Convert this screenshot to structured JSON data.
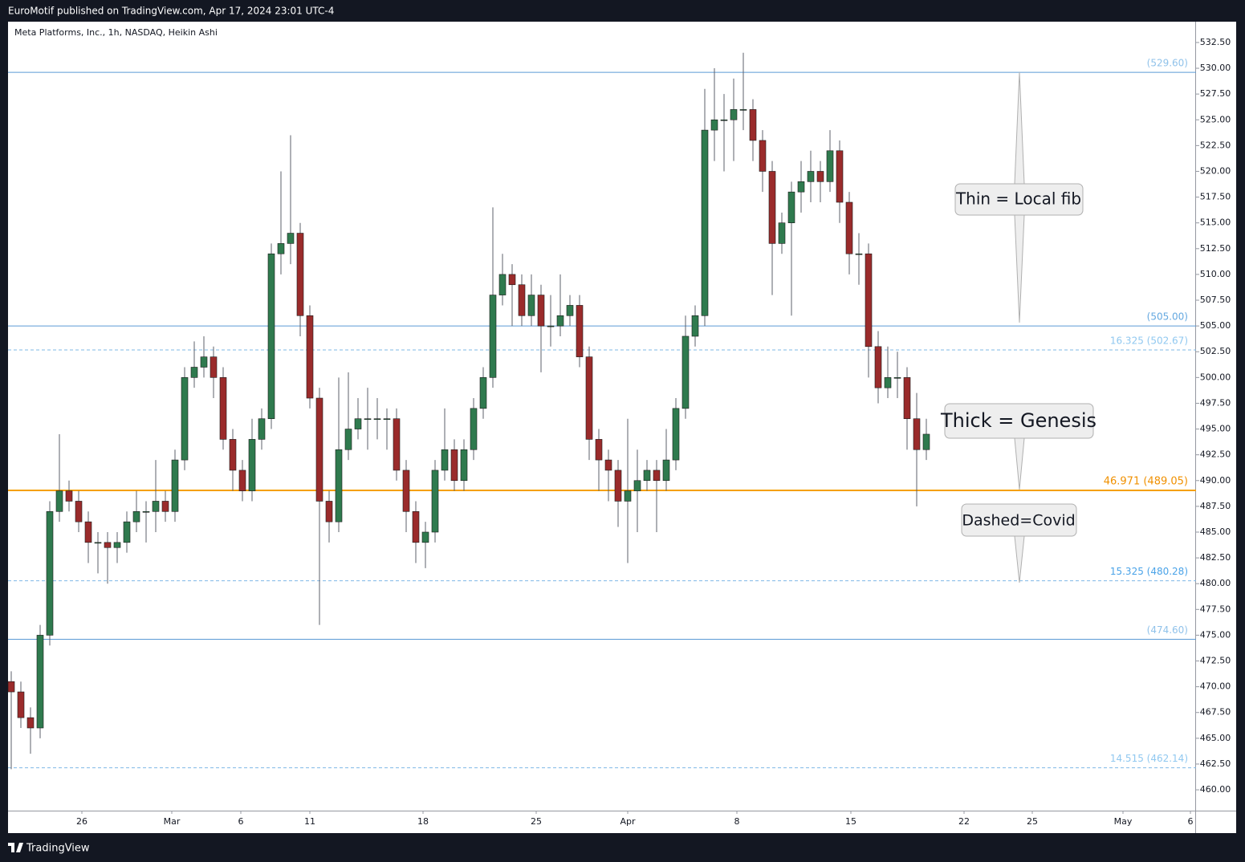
{
  "header": {
    "publisher": "EuroMotif published on TradingView.com, Apr 17, 2024 23:01 UTC-4"
  },
  "footer": {
    "brand": "TradingView"
  },
  "chart_data": {
    "type": "candlestick",
    "title": "Meta Platforms, Inc., 1h, NASDAQ, Heikin Ashi",
    "up_color": "#2f7a4e",
    "down_color": "#9a2b2b",
    "wick_color": "#5d606b",
    "x": [
      0,
      3,
      6,
      9,
      12,
      15,
      18,
      21,
      24,
      27,
      30,
      33,
      36,
      39,
      42,
      45,
      48,
      51,
      54,
      57,
      60,
      63,
      66,
      69,
      72,
      75,
      78,
      81,
      84,
      87,
      90,
      93,
      96,
      99,
      102,
      105,
      108,
      111,
      114,
      117,
      120,
      123,
      126,
      129,
      132,
      135,
      138,
      141,
      144,
      147,
      150,
      153,
      156,
      159,
      162,
      165,
      168,
      171,
      174,
      177,
      180,
      183,
      186,
      189,
      192,
      195,
      198,
      201,
      204,
      207,
      210,
      213,
      216,
      219,
      222,
      225,
      228,
      231,
      234,
      237,
      240,
      243,
      246,
      249,
      252,
      255,
      258,
      261,
      264,
      267,
      270,
      273,
      276,
      279,
      282,
      285
    ],
    "open": [
      470.5,
      469.5,
      467,
      466,
      475,
      487,
      489,
      488,
      486,
      484,
      484,
      483.5,
      484,
      486,
      487,
      487,
      488,
      487,
      492,
      500,
      501,
      502,
      500,
      494,
      491,
      489,
      494,
      496,
      512,
      513,
      514,
      506,
      498,
      488,
      486,
      493,
      495,
      496,
      496,
      496,
      496,
      491,
      487,
      484,
      485,
      491,
      493,
      490,
      493,
      497,
      500,
      508,
      510,
      509,
      506,
      508,
      505,
      505,
      506,
      507,
      502,
      494,
      492,
      491,
      488,
      489,
      490,
      491,
      490,
      492,
      497,
      504,
      506,
      524,
      525,
      525,
      526,
      526,
      523,
      520,
      513,
      515,
      518,
      519,
      520,
      519,
      522,
      517,
      512,
      512,
      503,
      499,
      500,
      500,
      496,
      493
    ],
    "high": [
      471.5,
      470.5,
      468,
      476,
      488,
      494.5,
      490,
      489,
      487,
      485,
      485,
      485,
      487,
      489,
      488,
      492,
      489,
      493,
      501,
      503.5,
      504,
      503,
      501,
      495,
      492,
      496,
      497,
      513,
      520,
      523.5,
      515,
      507,
      499,
      489,
      500,
      500.5,
      498,
      499,
      498,
      497,
      497,
      492,
      488,
      486,
      492,
      497,
      494,
      494,
      498,
      501,
      516.5,
      512,
      511,
      510,
      510,
      509,
      508,
      510,
      508,
      508,
      503,
      495,
      493,
      492,
      496,
      493,
      492,
      492,
      495,
      498,
      506,
      507,
      528,
      530,
      527.5,
      529,
      531.5,
      527,
      524,
      521,
      516,
      519,
      521,
      522,
      521,
      524,
      523,
      518,
      514,
      513,
      504.5,
      503,
      502.5,
      501,
      498.5,
      496
    ],
    "low": [
      462,
      466,
      463.5,
      465,
      474,
      486,
      487,
      485,
      482,
      481,
      480,
      482,
      483,
      485,
      484,
      485,
      486,
      486,
      491,
      499,
      500,
      498,
      493,
      489,
      488,
      488,
      493,
      495,
      510,
      511,
      504,
      497,
      476,
      484,
      485,
      492,
      494,
      493,
      494,
      493,
      490,
      485,
      482,
      481.5,
      484,
      490,
      489,
      489,
      492,
      496,
      499,
      507,
      505,
      505,
      505,
      500.5,
      503,
      504,
      505,
      501,
      492,
      489,
      488,
      485.5,
      482,
      485,
      489,
      485,
      489,
      491,
      496,
      503,
      505,
      521,
      520,
      521,
      524,
      521,
      518,
      508,
      512,
      506,
      516,
      517,
      517,
      518,
      515,
      510,
      509,
      500,
      497.5,
      498,
      498,
      493,
      487.5,
      492
    ],
    "close": [
      469.5,
      467,
      466,
      475,
      487,
      489,
      488,
      486,
      484,
      484,
      483.5,
      484,
      486,
      487,
      487,
      488,
      487,
      492,
      500,
      501,
      502,
      500,
      494,
      491,
      489,
      494,
      496,
      512,
      513,
      514,
      506,
      498,
      488,
      486,
      493,
      495,
      496,
      496,
      496,
      496,
      491,
      487,
      484,
      485,
      491,
      493,
      490,
      493,
      497,
      500,
      508,
      510,
      509,
      506,
      508,
      505,
      505,
      506,
      507,
      502,
      494,
      492,
      491,
      488,
      489,
      490,
      491,
      490,
      492,
      497,
      504,
      506,
      524,
      525,
      525,
      526,
      526,
      523,
      520,
      513,
      515,
      518,
      519,
      520,
      519,
      522,
      517,
      512,
      512,
      503,
      499,
      500,
      500,
      496,
      493,
      494.5
    ],
    "xlim": [
      -1,
      369
    ],
    "xticks": [
      {
        "value": 22,
        "label": "26"
      },
      {
        "value": 50,
        "label": "Mar"
      },
      {
        "value": 71.5,
        "label": "6"
      },
      {
        "value": 93,
        "label": "11"
      },
      {
        "value": 128.25,
        "label": "18"
      },
      {
        "value": 163.5,
        "label": "25"
      },
      {
        "value": 192,
        "label": "Apr"
      },
      {
        "value": 226,
        "label": "8"
      },
      {
        "value": 261.5,
        "label": "15"
      },
      {
        "value": 296.75,
        "label": "22"
      },
      {
        "value": 318,
        "label": "25"
      },
      {
        "value": 346.25,
        "label": "May"
      },
      {
        "value": 367.25,
        "label": "6"
      }
    ],
    "ylim": [
      457.98,
      534.52
    ],
    "yticks": [
      {
        "value": 460,
        "label": "460.00"
      },
      {
        "value": 462.5,
        "label": "462.50"
      },
      {
        "value": 465,
        "label": "465.00"
      },
      {
        "value": 467.5,
        "label": "467.50"
      },
      {
        "value": 470,
        "label": "470.00"
      },
      {
        "value": 472.5,
        "label": "472.50"
      },
      {
        "value": 475,
        "label": "475.00"
      },
      {
        "value": 477.5,
        "label": "477.50"
      },
      {
        "value": 480,
        "label": "480.00"
      },
      {
        "value": 482.5,
        "label": "482.50"
      },
      {
        "value": 485,
        "label": "485.00"
      },
      {
        "value": 487.5,
        "label": "487.50"
      },
      {
        "value": 490,
        "label": "490.00"
      },
      {
        "value": 492.5,
        "label": "492.50"
      },
      {
        "value": 495,
        "label": "495.00"
      },
      {
        "value": 497.5,
        "label": "497.50"
      },
      {
        "value": 500,
        "label": "500.00"
      },
      {
        "value": 502.5,
        "label": "502.50"
      },
      {
        "value": 505,
        "label": "505.00"
      },
      {
        "value": 507.5,
        "label": "507.50"
      },
      {
        "value": 510,
        "label": "510.00"
      },
      {
        "value": 512.5,
        "label": "512.50"
      },
      {
        "value": 515,
        "label": "515.00"
      },
      {
        "value": 517.5,
        "label": "517.50"
      },
      {
        "value": 520,
        "label": "520.00"
      },
      {
        "value": 522.5,
        "label": "522.50"
      },
      {
        "value": 525,
        "label": "525.00"
      },
      {
        "value": 527.5,
        "label": "527.50"
      },
      {
        "value": 530,
        "label": "530.00"
      },
      {
        "value": 532.5,
        "label": "532.50"
      }
    ],
    "levels": [
      {
        "value": 529.6,
        "label": "(529.60)",
        "style": "solid",
        "color": "#5b9bd5",
        "label_color": "#90c2ea",
        "width": 1
      },
      {
        "value": 505,
        "label": "(505.00)",
        "style": "solid",
        "color": "#5b9bd5",
        "label_color": "#64a8e0",
        "width": 1
      },
      {
        "value": 502.67,
        "label": "16.325 (502.67)",
        "style": "dashed",
        "color": "#7fb8e6",
        "label_color": "#90c8f0",
        "width": 1
      },
      {
        "value": 489.05,
        "label": "46.971 (489.05)",
        "style": "solid",
        "color": "#f5a000",
        "label_color": "#f09000",
        "width": 2
      },
      {
        "value": 480.28,
        "label": "15.325 (480.28)",
        "style": "dashed",
        "color": "#7fb8e6",
        "label_color": "#4aa3e8",
        "width": 1
      },
      {
        "value": 474.6,
        "label": "(474.60)",
        "style": "solid",
        "color": "#5b9bd5",
        "label_color": "#90c2ea",
        "width": 1
      },
      {
        "value": 462.14,
        "label": "14.515 (462.14)",
        "style": "dashed",
        "color": "#7fb8e6",
        "label_color": "#90c8f0",
        "width": 1
      }
    ],
    "annotations": [
      "Thin = Local fib",
      "Thick = Genesis",
      "Dashed=Covid"
    ]
  }
}
